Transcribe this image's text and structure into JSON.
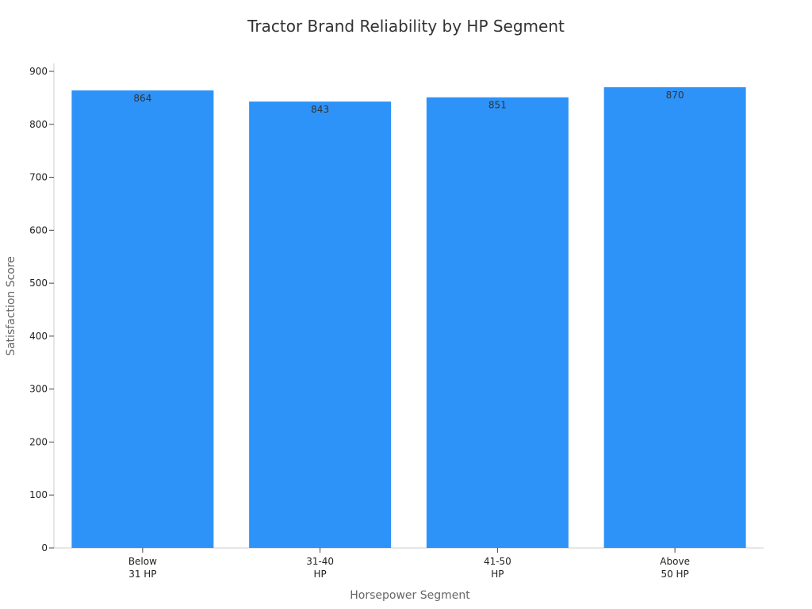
{
  "chart_data": {
    "type": "bar",
    "title": "Tractor Brand Reliability by HP Segment",
    "xlabel": "Horsepower Segment",
    "ylabel": "Satisfaction Score",
    "categories": [
      [
        "Below",
        "31 HP"
      ],
      [
        "31-40",
        "HP"
      ],
      [
        "41-50",
        "HP"
      ],
      [
        "Above",
        "50 HP"
      ]
    ],
    "values": [
      864,
      843,
      851,
      870
    ],
    "ylim": [
      0,
      900
    ],
    "yticks": [
      0,
      100,
      200,
      300,
      400,
      500,
      600,
      700,
      800,
      900
    ],
    "grid": false,
    "data_labels": true,
    "colors": {
      "bar": "#2e93f8",
      "axis": "#cccccc"
    }
  }
}
